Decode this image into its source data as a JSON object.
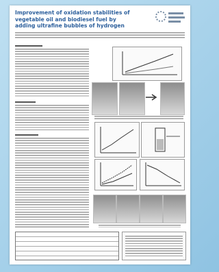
{
  "header": {
    "title_lines": [
      "Improvement of oxidation stabilities of",
      "vegetable oil and biodiesel fuel by",
      "adding ultrafine bubbles of hydrogen"
    ]
  }
}
